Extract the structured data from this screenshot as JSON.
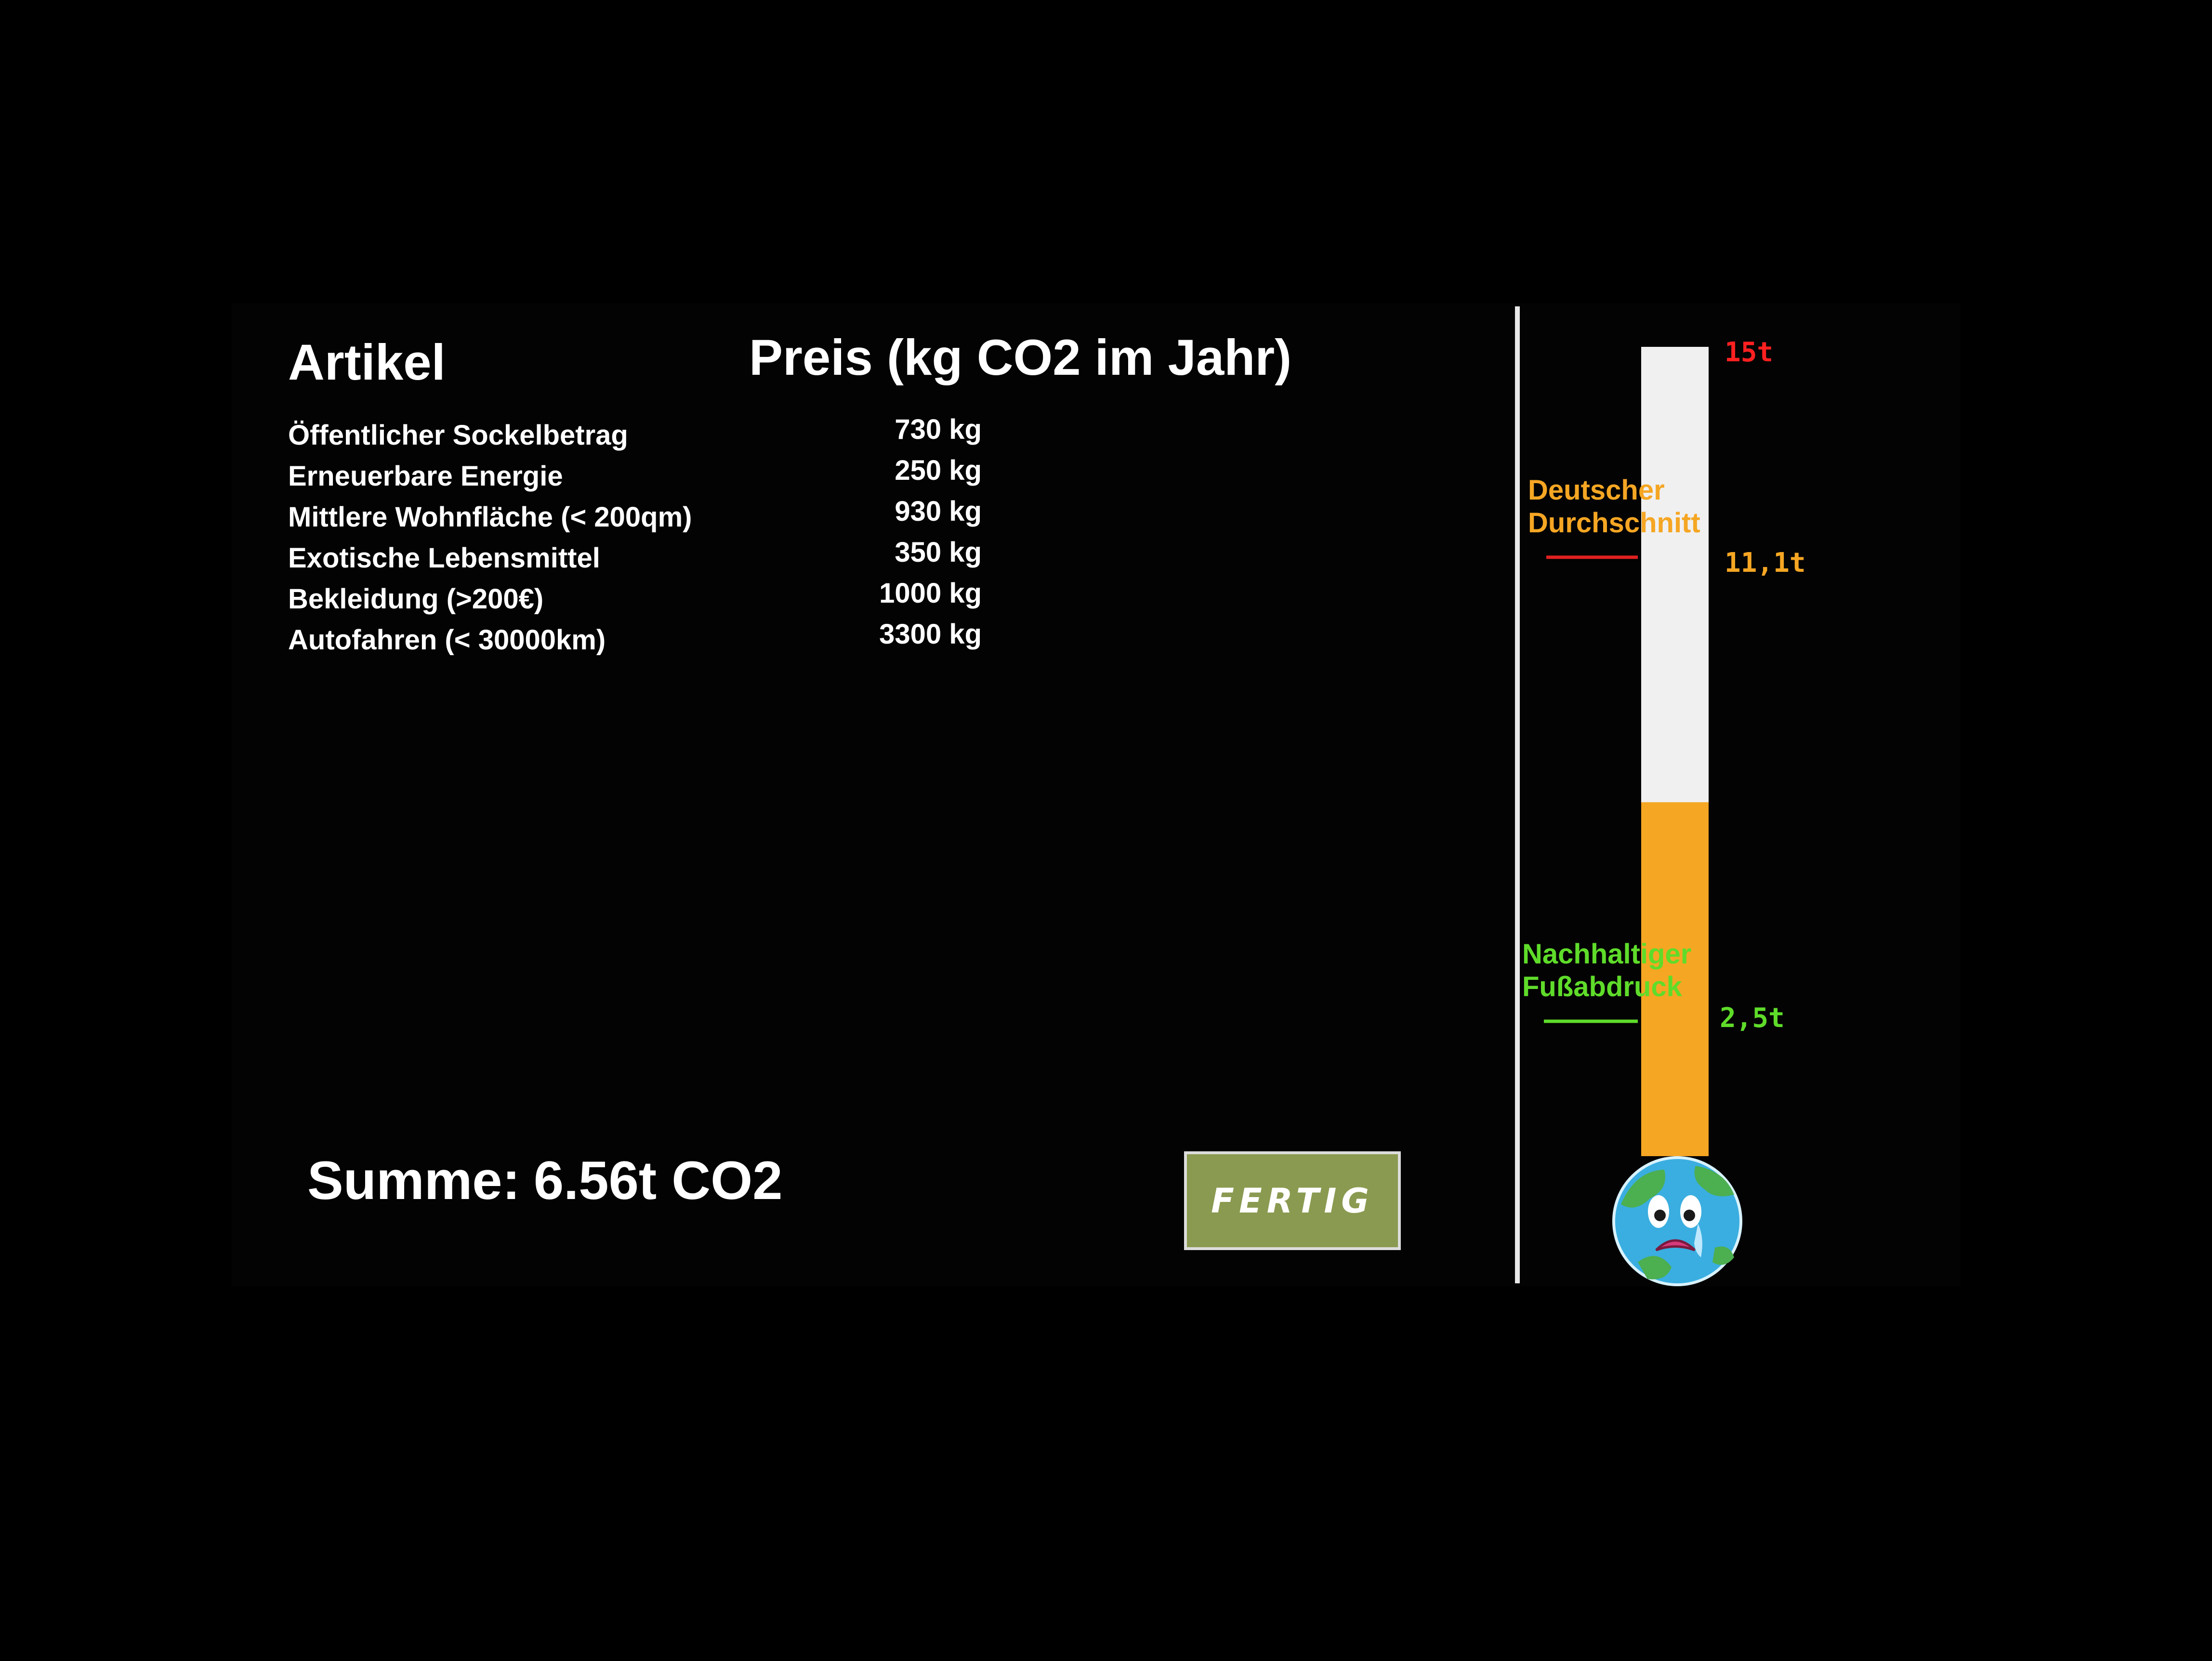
{
  "header": {
    "item_label": "Artikel",
    "price_label": "Preis (kg CO2 im Jahr)"
  },
  "items": [
    {
      "name": "Öffentlicher Sockelbetrag",
      "value": "730 kg"
    },
    {
      "name": "Erneuerbare Energie",
      "value": "250 kg"
    },
    {
      "name": "Mittlere Wohnfläche (< 200qm)",
      "value": "930 kg"
    },
    {
      "name": "Exotische Lebensmittel",
      "value": "350 kg"
    },
    {
      "name": "Bekleidung (>200€)",
      "value": "1000 kg"
    },
    {
      "name": "Autofahren (< 30000km)",
      "value": "3300 kg"
    }
  ],
  "summary": {
    "label": "Summe:",
    "value": "6.56t CO2"
  },
  "done_button": {
    "label": "FERTIG"
  },
  "meter": {
    "max": 15,
    "current": 6.56,
    "max_label": "15t",
    "average": {
      "value": 11.1,
      "label": "11,1t",
      "line1": "Deutscher",
      "line2": "Durchschnitt"
    },
    "sustainable": {
      "value": 2.5,
      "label": "2,5t",
      "line1": "Nachhaltiger",
      "line2": "Fußabdruck"
    },
    "colors": {
      "fill": "#f5a623",
      "empty": "#f0f0f0",
      "max_mark": "#ff2020",
      "average": "#f5a623",
      "average_line": "#e02020",
      "sustainable": "#5fdc2a"
    }
  },
  "mascot": {
    "icon": "crying-earth-icon"
  }
}
